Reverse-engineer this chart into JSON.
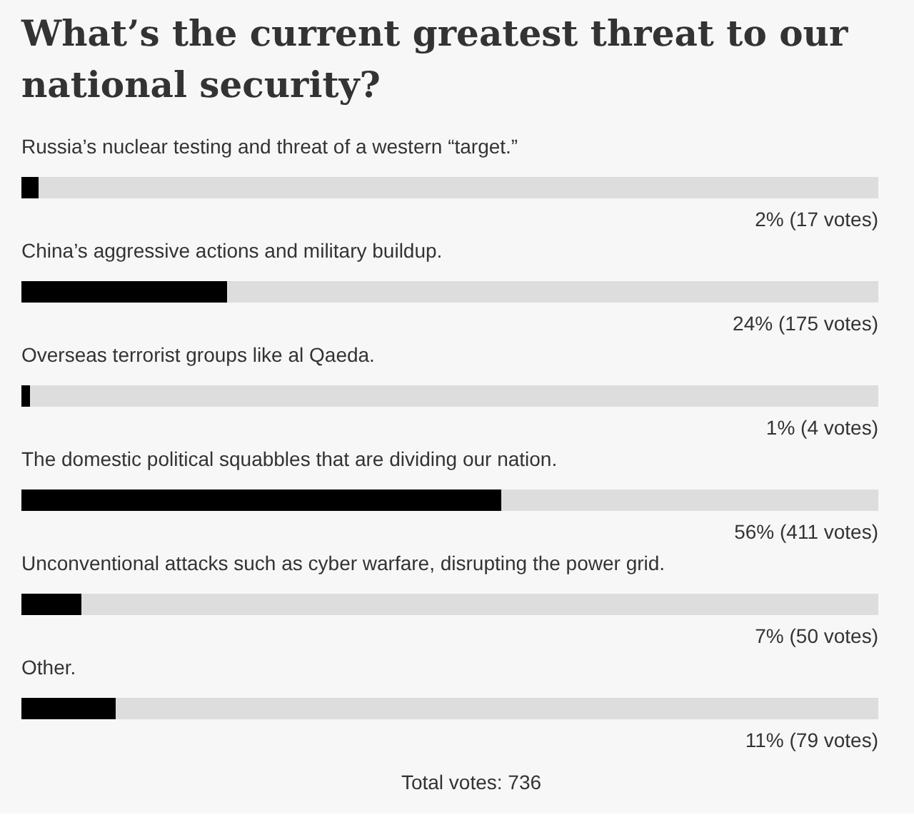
{
  "chart_data": {
    "type": "bar",
    "orientation": "horizontal",
    "title": "What’s the current greatest threat to our national security?",
    "categories": [
      "Russia’s nuclear testing and threat of a western “target.”",
      "China’s aggressive actions and military buildup.",
      "Overseas terrorist groups like al Qaeda.",
      "The domestic political squabbles that are dividing our nation.",
      "Unconventional attacks such as cyber warfare, disrupting the power grid.",
      "Other."
    ],
    "values": [
      2,
      24,
      1,
      56,
      7,
      11
    ],
    "value_labels": [
      "2% (17 votes)",
      "24% (175 votes)",
      "1% (4 votes)",
      "56% (411 votes)",
      "7% (50 votes)",
      "11% (79 votes)"
    ],
    "color": "#000000",
    "xlim": [
      0,
      100
    ],
    "tick_labels": false,
    "annotations": [
      "Total votes: 736"
    ]
  }
}
